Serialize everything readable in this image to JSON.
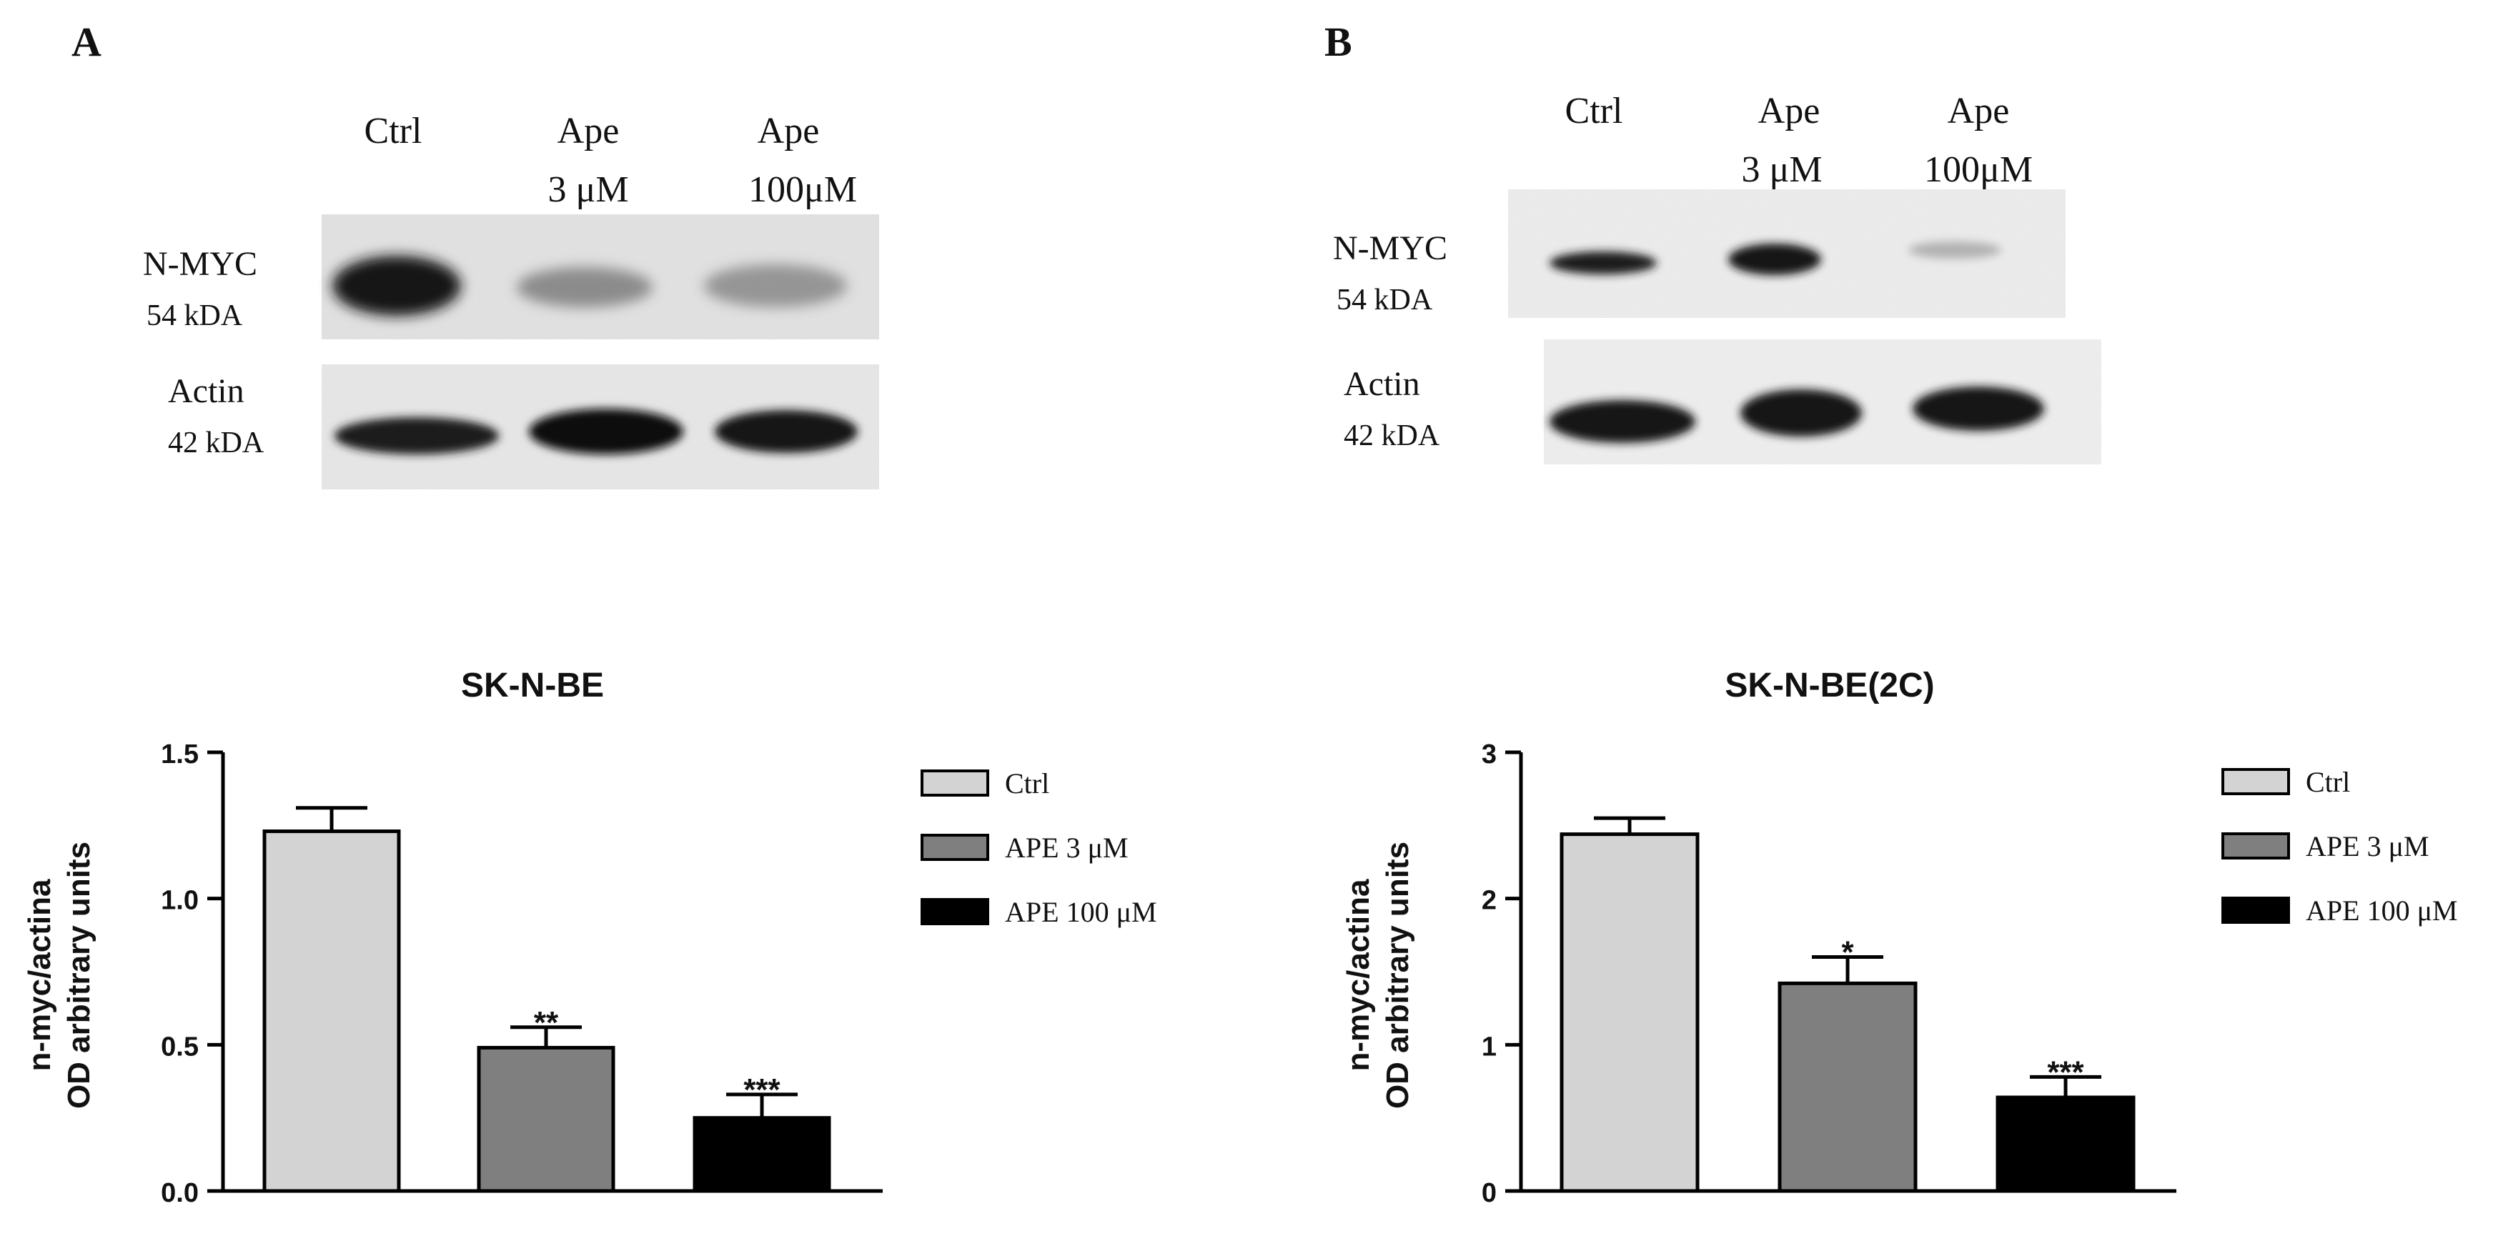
{
  "panels": [
    {
      "letter": "A",
      "lanes": [
        {
          "l1": "Ctrl",
          "l2": ""
        },
        {
          "l1": "Ape",
          "l2": "3 μM"
        },
        {
          "l1": "Ape",
          "l2": "100μM"
        }
      ],
      "blot_rows": [
        {
          "label": "N-MYC",
          "kda": "54 kDA"
        },
        {
          "label": "Actin",
          "kda": "42 kDA"
        }
      ]
    },
    {
      "letter": "B",
      "lanes": [
        {
          "l1": "Ctrl",
          "l2": ""
        },
        {
          "l1": "Ape",
          "l2": "3 μM"
        },
        {
          "l1": "Ape",
          "l2": "100μM"
        }
      ],
      "blot_rows": [
        {
          "label": "N-MYC",
          "kda": "54 kDA"
        },
        {
          "label": "Actin",
          "kda": "42 kDA"
        }
      ]
    }
  ],
  "chart_data": [
    {
      "type": "bar",
      "title": "SK-N-BE",
      "ylabel_lines": [
        "n-myc/actina",
        "OD arbitrary units"
      ],
      "ylim": [
        0,
        1.5
      ],
      "yticks": [
        0,
        0.5,
        1.0,
        1.5
      ],
      "ytick_labels": [
        "0.0",
        "0.5",
        "1.0",
        "1.5"
      ],
      "categories": [
        "Ctrl",
        "APE 3 μM",
        "APE 100 μM"
      ],
      "values": [
        1.23,
        0.49,
        0.25
      ],
      "errors": [
        0.08,
        0.07,
        0.08
      ],
      "significance": [
        "",
        "**",
        "***"
      ],
      "colors": [
        "#d3d3d3",
        "#7f7f7f",
        "#000000"
      ],
      "legend": [
        "Ctrl",
        "APE 3 μM",
        "APE 100 μM"
      ],
      "legend_position": "right",
      "grid": false
    },
    {
      "type": "bar",
      "title": "SK-N-BE(2C)",
      "ylabel_lines": [
        "n-myc/actina",
        "OD arbitrary units"
      ],
      "ylim": [
        0,
        3
      ],
      "yticks": [
        0,
        1,
        2,
        3
      ],
      "ytick_labels": [
        "0",
        "1",
        "2",
        "3"
      ],
      "categories": [
        "Ctrl",
        "APE 3 μM",
        "APE 100 μM"
      ],
      "values": [
        2.44,
        1.42,
        0.64
      ],
      "errors": [
        0.11,
        0.18,
        0.14
      ],
      "significance": [
        "",
        "*",
        "***"
      ],
      "colors": [
        "#d3d3d3",
        "#7f7f7f",
        "#000000"
      ],
      "legend": [
        "Ctrl",
        "APE 3 μM",
        "APE 100 μM"
      ],
      "legend_position": "right",
      "grid": false
    }
  ]
}
